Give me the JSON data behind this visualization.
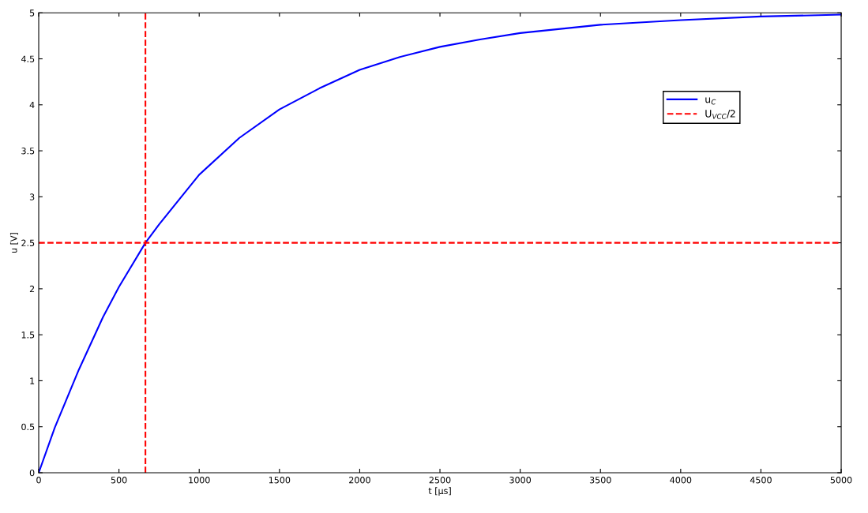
{
  "chart_data": {
    "type": "line",
    "xlabel": "t [µs]",
    "ylabel": "u [V]",
    "xlim": [
      0,
      5000
    ],
    "xticks": [
      0,
      500,
      1000,
      1500,
      2000,
      2500,
      3000,
      3500,
      4000,
      4500,
      5000
    ],
    "ylim": [
      0,
      5
    ],
    "yticks": [
      0,
      0.5,
      1,
      1.5,
      2,
      2.5,
      3,
      3.5,
      4,
      4.5,
      5
    ],
    "grid": false,
    "legend": "top right",
    "marker": "none",
    "series": [
      {
        "name": "u$_{C}$",
        "color": "#0000ff",
        "line_style": "solid",
        "x": [
          0,
          100,
          250,
          400,
          500,
          665,
          750,
          1000,
          1250,
          1500,
          1750,
          2000,
          2250,
          2500,
          2750,
          3000,
          3500,
          4000,
          4500,
          5000
        ],
        "values": [
          0,
          0.49,
          1.12,
          1.69,
          2.02,
          2.5,
          2.7,
          3.24,
          3.64,
          3.95,
          4.18,
          4.38,
          4.52,
          4.63,
          4.71,
          4.78,
          4.87,
          4.92,
          4.96,
          4.98
        ]
      },
      {
        "name": "U$_{VCC}$/2",
        "color": "#ff0000",
        "line_style": "dashed",
        "x": [
          0,
          5000
        ],
        "values": [
          2.5,
          2.5
        ]
      }
    ],
    "ref_lines": [
      {
        "axis": "x",
        "value": 665,
        "color": "#ff0000",
        "line_style": "dashed"
      }
    ]
  }
}
